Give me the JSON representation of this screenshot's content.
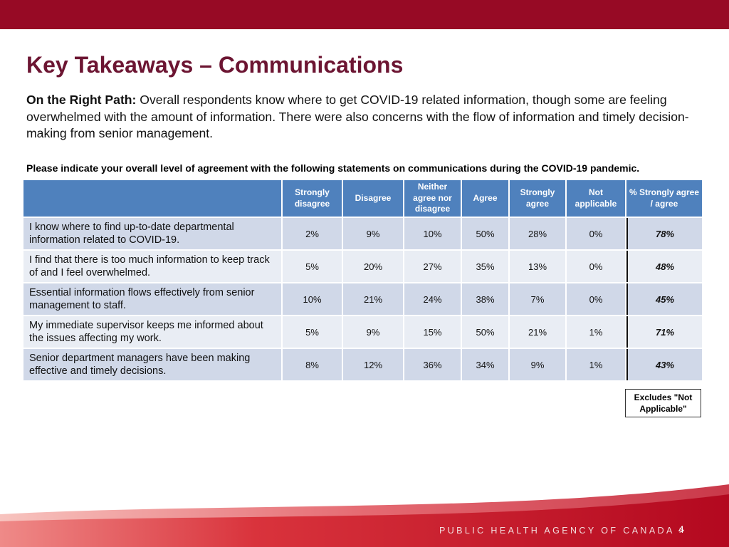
{
  "slide": {
    "title": "Key Takeaways – Communications",
    "intro_lead": "On the Right Path:",
    "intro_body": " Overall respondents know where to get COVID-19 related information, though some are feeling overwhelmed with the amount of information. There were also concerns with the flow of information and timely decision-making from senior management.",
    "question": "Please indicate your overall level of agreement with the following statements on communications during the COVID-19 pandemic.",
    "table": {
      "headers": [
        "",
        "Strongly disagree",
        "Disagree",
        "Neither agree nor disagree",
        "Agree",
        "Strongly agree",
        "Not applicable",
        "% Strongly agree / agree"
      ],
      "rows": [
        {
          "statement": "I know where to find up-to-date departmental information related to COVID-19.",
          "values": [
            "2%",
            "9%",
            "10%",
            "50%",
            "28%",
            "0%"
          ],
          "total": "78%"
        },
        {
          "statement": "I find that there is too much information to keep track of and I feel overwhelmed.",
          "values": [
            "5%",
            "20%",
            "27%",
            "35%",
            "13%",
            "0%"
          ],
          "total": "48%"
        },
        {
          "statement": "Essential information flows effectively from senior management to staff.",
          "values": [
            "10%",
            "21%",
            "24%",
            "38%",
            "7%",
            "0%"
          ],
          "total": "45%"
        },
        {
          "statement": "My immediate supervisor keeps me informed about the issues affecting my work.",
          "values": [
            "5%",
            "9%",
            "15%",
            "50%",
            "21%",
            "1%"
          ],
          "total": "71%"
        },
        {
          "statement": "Senior department managers have been making effective and timely decisions.",
          "values": [
            "8%",
            "12%",
            "36%",
            "34%",
            "9%",
            "1%"
          ],
          "total": "43%"
        }
      ]
    },
    "note": "Excludes \"Not Applicable\"",
    "footer": {
      "agency": "PUBLIC HEALTH AGENCY OF CANADA >",
      "page_number": "4"
    },
    "colors": {
      "band": "#970a25",
      "title": "#6c1532",
      "header_fill": "#4f81bd",
      "row_fill_dark": "#d0d8e8",
      "row_fill_light": "#e9edf4"
    }
  }
}
